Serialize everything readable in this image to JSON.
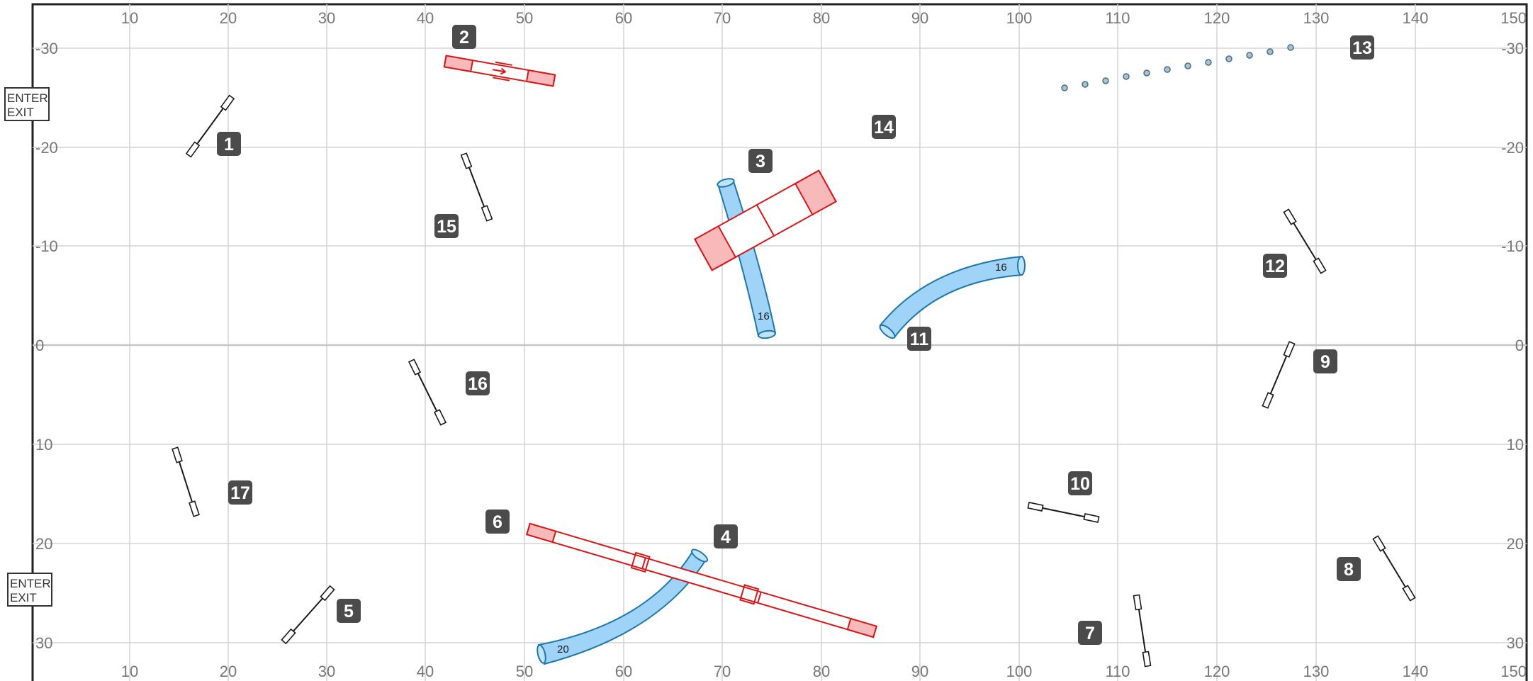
{
  "course": {
    "x_ticks": [
      "10",
      "20",
      "30",
      "40",
      "50",
      "60",
      "70",
      "80",
      "90",
      "100",
      "110",
      "120",
      "130",
      "140",
      "150"
    ],
    "y_ticks": [
      "-30",
      "-20",
      "-10",
      "0",
      "10",
      "20",
      "30"
    ],
    "entry_exit": [
      {
        "line1": "ENTER",
        "line2": "EXIT"
      },
      {
        "line1": "ENTER",
        "line2": "EXIT"
      }
    ],
    "markers": [
      "1",
      "2",
      "3",
      "4",
      "5",
      "6",
      "7",
      "8",
      "9",
      "10",
      "11",
      "12",
      "13",
      "14",
      "15",
      "16",
      "17"
    ],
    "tunnel_labels": [
      "16",
      "16",
      "20"
    ],
    "colors": {
      "tunnel": "#9fd3f7",
      "contact": "#f7b9b9",
      "contact_outline": "#d81818",
      "marker": "#4b4b4b"
    }
  }
}
